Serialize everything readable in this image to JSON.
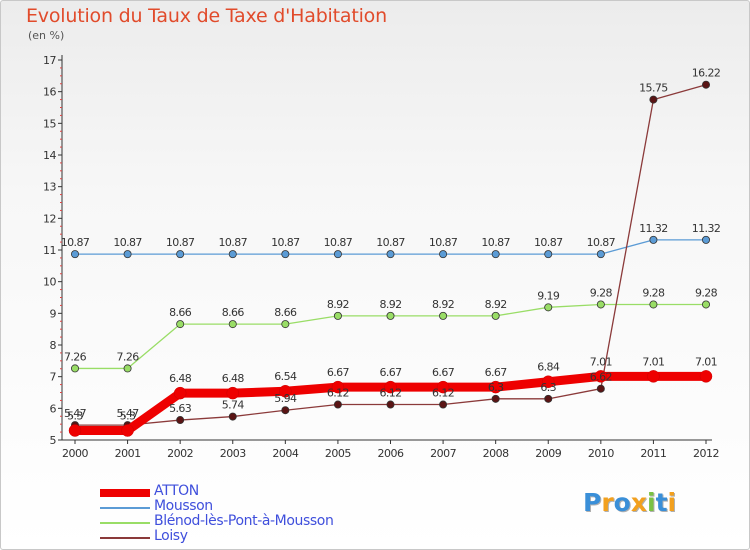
{
  "chart_data": {
    "type": "line",
    "title": "Evolution du Taux de Taxe d'Habitation",
    "subtitle": "(en %)",
    "x": [
      "2000",
      "2001",
      "2002",
      "2003",
      "2004",
      "2005",
      "2006",
      "2007",
      "2008",
      "2009",
      "2010",
      "2011",
      "2012"
    ],
    "ylim": [
      5,
      17
    ],
    "yticks": [
      "5",
      "6",
      "7",
      "8",
      "9",
      "10",
      "11",
      "12",
      "13",
      "14",
      "15",
      "16",
      "17"
    ],
    "grid": false,
    "legend_position": "bottom-left",
    "series": [
      {
        "name": "ATTON",
        "color": "#ee0000",
        "values": [
          5.3,
          5.3,
          6.48,
          6.48,
          6.54,
          6.67,
          6.67,
          6.67,
          6.67,
          6.84,
          7.01,
          7.01,
          7.01
        ],
        "labels": [
          "5.3",
          "5.3",
          "6.48",
          "6.48",
          "6.54",
          "6.67",
          "6.67",
          "6.67",
          "6.67",
          "6.84",
          "7.01",
          "7.01",
          "7.01"
        ]
      },
      {
        "name": "Mousson",
        "color": "#5b9bd5",
        "values": [
          10.87,
          10.87,
          10.87,
          10.87,
          10.87,
          10.87,
          10.87,
          10.87,
          10.87,
          10.87,
          10.87,
          11.32,
          11.32
        ],
        "labels": [
          "10.87",
          "10.87",
          "10.87",
          "10.87",
          "10.87",
          "10.87",
          "10.87",
          "10.87",
          "10.87",
          "10.87",
          "10.87",
          "11.32",
          "11.32"
        ]
      },
      {
        "name": "Blénod-lès-Pont-à-Mousson",
        "color": "#99dd66",
        "values": [
          7.26,
          7.26,
          8.66,
          8.66,
          8.66,
          8.92,
          8.92,
          8.92,
          8.92,
          9.19,
          9.28,
          9.28,
          9.28
        ],
        "labels": [
          "7.26",
          "7.26",
          "8.66",
          "8.66",
          "8.66",
          "8.92",
          "8.92",
          "8.92",
          "8.92",
          "9.19",
          "9.28",
          "9.28",
          "9.28"
        ]
      },
      {
        "name": "Loisy",
        "color": "#8b3a3a",
        "values": [
          5.47,
          5.47,
          5.63,
          5.74,
          5.94,
          6.12,
          6.12,
          6.12,
          6.3,
          6.3,
          6.62,
          15.75,
          16.22
        ],
        "labels": [
          "5.47",
          "5.47",
          "5.63",
          "5.74",
          "5.94",
          "6.12",
          "6.12",
          "6.12",
          "6.3",
          "6.3",
          "6.62",
          "15.75",
          "16.22"
        ]
      }
    ]
  },
  "logo": {
    "letters": [
      "P",
      "r",
      "o",
      "x",
      "i",
      "t",
      "i"
    ],
    "colors": [
      "#3a8fd8",
      "#f2a01e",
      "#3a8fd8",
      "#f2a01e",
      "#7ac143",
      "#3a8fd8",
      "#f2a01e"
    ]
  }
}
